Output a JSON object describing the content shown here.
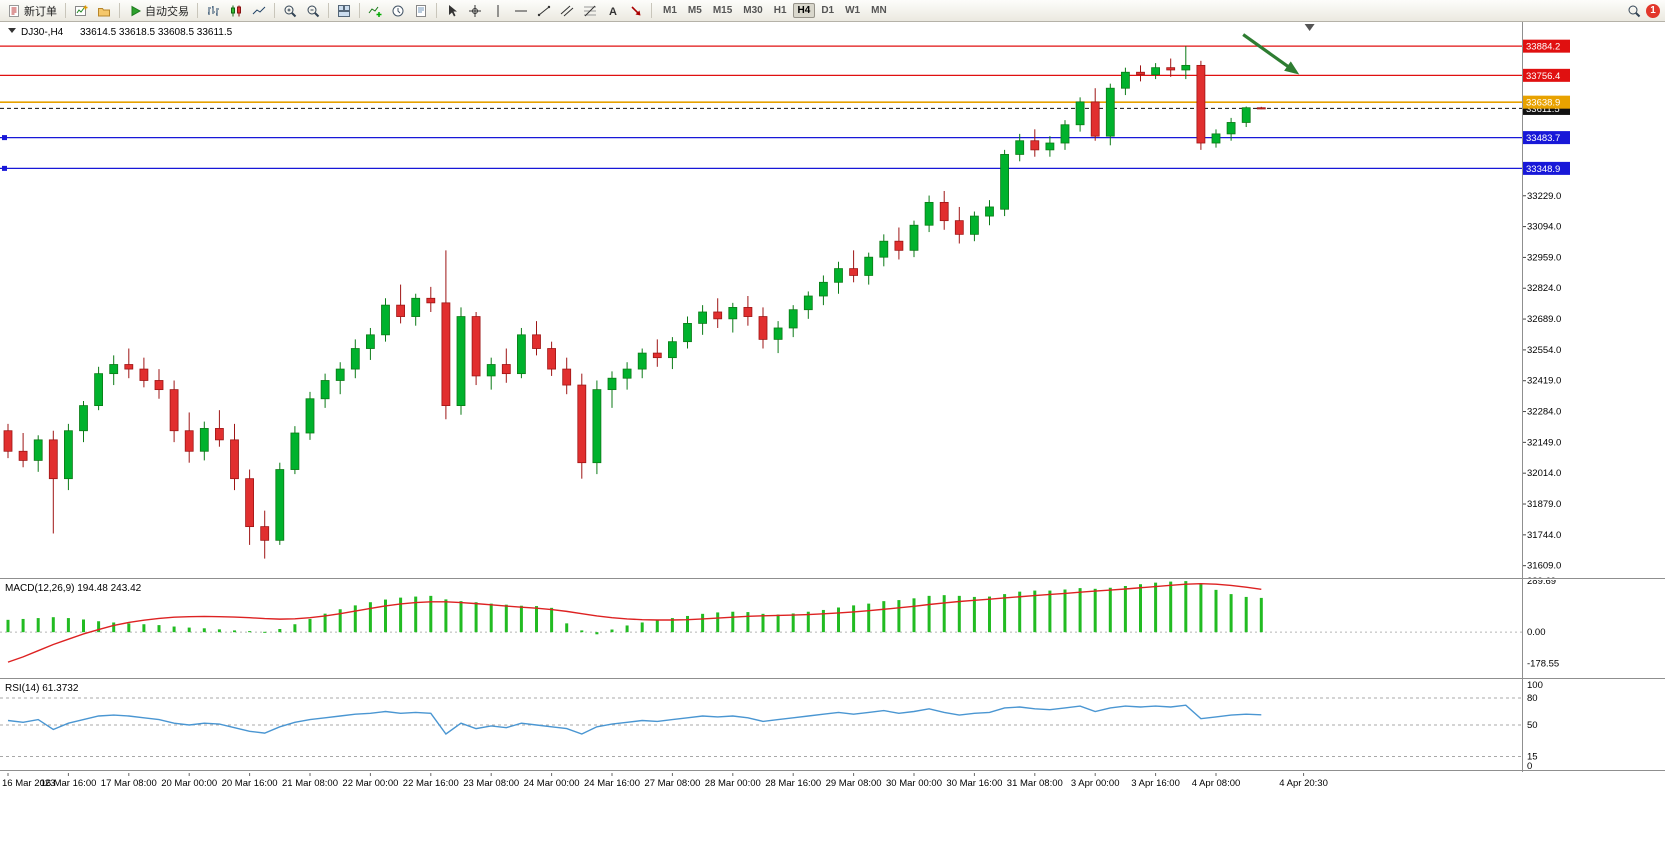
{
  "toolbar": {
    "new_order": {
      "label": "新订单"
    },
    "autotrading": {
      "label": "自动交易"
    },
    "timeframes": {
      "items": [
        "M1",
        "M5",
        "M15",
        "M30",
        "H1",
        "H4",
        "D1",
        "W1",
        "MN"
      ],
      "active": "H4"
    },
    "notification": {
      "count": "1"
    }
  },
  "chart": {
    "symbol_period": "DJ30-,H4",
    "ohlc_line": "33614.5 33618.5 33608.5 33611.5"
  },
  "chart_data": {
    "type": "candlestick",
    "title": "DJ30-,H4",
    "ohlc": {
      "open": 33614.5,
      "high": 33618.5,
      "low": 33608.5,
      "close": 33611.5
    },
    "ylim": [
      31555,
      33990
    ],
    "colors": {
      "up": "#00b22d",
      "up_border": "#0b7a16",
      "down": "#e12f2f",
      "down_border": "#9e1515",
      "macd_hist": "#22bb22",
      "macd_signal": "#dd2222",
      "rsi_line": "#4a96d2"
    },
    "price_ticks": [
      {
        "value": 33229,
        "label": "33229.0"
      },
      {
        "value": 33094,
        "label": "33094.0"
      },
      {
        "value": 32959,
        "label": "32959.0"
      },
      {
        "value": 32824,
        "label": "32824.0"
      },
      {
        "value": 32689,
        "label": "32689.0"
      },
      {
        "value": 32554,
        "label": "32554.0"
      },
      {
        "value": 32419,
        "label": "32419.0"
      },
      {
        "value": 32284,
        "label": "32284.0"
      },
      {
        "value": 32149,
        "label": "32149.0"
      },
      {
        "value": 32014,
        "label": "32014.0"
      },
      {
        "value": 31879,
        "label": "31879.0"
      },
      {
        "value": 31744,
        "label": "31744.0"
      },
      {
        "value": 31609,
        "label": "31609.0"
      }
    ],
    "hlines": [
      {
        "name": "resistance-line-1",
        "price": 33884.2,
        "label": "33884.2",
        "color": "#e01010",
        "width": 1.3
      },
      {
        "name": "resistance-line-2",
        "price": 33756.4,
        "label": "33756.4",
        "color": "#e01010",
        "width": 1.3
      },
      {
        "name": "bid-price-line",
        "price": 33611.5,
        "label": "33611.5",
        "color": "#111111",
        "width": 1,
        "dashed": true
      },
      {
        "name": "pivot-line",
        "price": 33638.9,
        "label": "33638.9",
        "color": "#e8a200",
        "width": 1.6
      },
      {
        "name": "support-line-1",
        "price": 33483.7,
        "label": "33483.7",
        "color": "#1818d8",
        "width": 1.3,
        "handles": true
      },
      {
        "name": "support-line-2",
        "price": 33348.9,
        "label": "33348.9",
        "color": "#1818d8",
        "width": 1.3,
        "handles": true
      }
    ],
    "candles": [
      [
        32200,
        32230,
        32080,
        32110
      ],
      [
        32110,
        32190,
        32040,
        32070
      ],
      [
        32070,
        32180,
        32020,
        32160
      ],
      [
        32160,
        32200,
        31750,
        31990
      ],
      [
        31990,
        32230,
        31940,
        32200
      ],
      [
        32200,
        32330,
        32150,
        32310
      ],
      [
        32310,
        32480,
        32290,
        32450
      ],
      [
        32450,
        32530,
        32400,
        32490
      ],
      [
        32490,
        32560,
        32430,
        32470
      ],
      [
        32470,
        32520,
        32390,
        32420
      ],
      [
        32420,
        32470,
        32340,
        32380
      ],
      [
        32380,
        32420,
        32150,
        32200
      ],
      [
        32200,
        32280,
        32060,
        32110
      ],
      [
        32110,
        32240,
        32070,
        32210
      ],
      [
        32210,
        32290,
        32130,
        32160
      ],
      [
        32160,
        32230,
        31940,
        31990
      ],
      [
        31990,
        32030,
        31700,
        31780
      ],
      [
        31780,
        31850,
        31640,
        31720
      ],
      [
        31720,
        32060,
        31700,
        32030
      ],
      [
        32030,
        32220,
        32010,
        32190
      ],
      [
        32190,
        32370,
        32160,
        32340
      ],
      [
        32340,
        32450,
        32300,
        32420
      ],
      [
        32420,
        32500,
        32360,
        32470
      ],
      [
        32470,
        32600,
        32430,
        32560
      ],
      [
        32560,
        32650,
        32510,
        32620
      ],
      [
        32620,
        32780,
        32590,
        32750
      ],
      [
        32750,
        32840,
        32670,
        32700
      ],
      [
        32700,
        32800,
        32660,
        32780
      ],
      [
        32780,
        32830,
        32720,
        32760
      ],
      [
        32760,
        32990,
        32250,
        32310
      ],
      [
        32310,
        32740,
        32270,
        32700
      ],
      [
        32700,
        32720,
        32400,
        32440
      ],
      [
        32440,
        32520,
        32380,
        32490
      ],
      [
        32490,
        32560,
        32410,
        32450
      ],
      [
        32450,
        32650,
        32430,
        32620
      ],
      [
        32620,
        32680,
        32530,
        32560
      ],
      [
        32560,
        32590,
        32440,
        32470
      ],
      [
        32470,
        32520,
        32360,
        32400
      ],
      [
        32400,
        32450,
        31990,
        32060
      ],
      [
        32060,
        32420,
        32010,
        32380
      ],
      [
        32380,
        32460,
        32300,
        32430
      ],
      [
        32430,
        32500,
        32380,
        32470
      ],
      [
        32470,
        32560,
        32430,
        32540
      ],
      [
        32540,
        32600,
        32480,
        32520
      ],
      [
        32520,
        32610,
        32470,
        32590
      ],
      [
        32590,
        32700,
        32560,
        32670
      ],
      [
        32670,
        32750,
        32620,
        32720
      ],
      [
        32720,
        32780,
        32650,
        32690
      ],
      [
        32690,
        32760,
        32630,
        32740
      ],
      [
        32740,
        32790,
        32660,
        32700
      ],
      [
        32700,
        32740,
        32560,
        32600
      ],
      [
        32600,
        32680,
        32540,
        32650
      ],
      [
        32650,
        32750,
        32610,
        32730
      ],
      [
        32730,
        32810,
        32690,
        32790
      ],
      [
        32790,
        32880,
        32750,
        32850
      ],
      [
        32850,
        32940,
        32800,
        32910
      ],
      [
        32910,
        32990,
        32850,
        32880
      ],
      [
        32880,
        32980,
        32840,
        32960
      ],
      [
        32960,
        33060,
        32920,
        33030
      ],
      [
        33030,
        33090,
        32950,
        32990
      ],
      [
        32990,
        33120,
        32960,
        33100
      ],
      [
        33100,
        33230,
        33070,
        33200
      ],
      [
        33200,
        33250,
        33080,
        33120
      ],
      [
        33120,
        33180,
        33020,
        33060
      ],
      [
        33060,
        33160,
        33030,
        33140
      ],
      [
        33140,
        33210,
        33100,
        33180
      ],
      [
        33170,
        33430,
        33140,
        33410
      ],
      [
        33410,
        33500,
        33380,
        33470
      ],
      [
        33470,
        33520,
        33400,
        33430
      ],
      [
        33430,
        33490,
        33400,
        33460
      ],
      [
        33460,
        33560,
        33430,
        33540
      ],
      [
        33540,
        33660,
        33510,
        33640
      ],
      [
        33640,
        33700,
        33470,
        33490
      ],
      [
        33490,
        33720,
        33450,
        33700
      ],
      [
        33700,
        33790,
        33670,
        33770
      ],
      [
        33770,
        33800,
        33730,
        33760
      ],
      [
        33760,
        33810,
        33740,
        33790
      ],
      [
        33790,
        33830,
        33750,
        33780
      ],
      [
        33780,
        33884,
        33740,
        33800
      ],
      [
        33800,
        33820,
        33430,
        33460
      ],
      [
        33460,
        33520,
        33440,
        33500
      ],
      [
        33500,
        33570,
        33470,
        33550
      ],
      [
        33550,
        33620,
        33530,
        33614.5
      ],
      [
        33614.5,
        33618.5,
        33608.5,
        33611.5
      ]
    ],
    "time_labels": [
      "16 Mar 2023",
      "16 Mar 16:00",
      "17 Mar 08:00",
      "20 Mar 00:00",
      "20 Mar 16:00",
      "21 Mar 08:00",
      "22 Mar 00:00",
      "22 Mar 16:00",
      "23 Mar 08:00",
      "24 Mar 00:00",
      "24 Mar 16:00",
      "27 Mar 08:00",
      "28 Mar 00:00",
      "28 Mar 16:00",
      "29 Mar 08:00",
      "30 Mar 00:00",
      "30 Mar 16:00",
      "31 Mar 08:00",
      "3 Apr 00:00",
      "3 Apr 16:00",
      "4 Apr 08:00",
      "4 Apr 20:30"
    ],
    "arrow": {
      "bar1": 81.8,
      "price1": 33935,
      "bar2": 85.3,
      "price2": 33770,
      "color": "#2e7d32"
    },
    "shift_marker_bar": 86.2,
    "macd": {
      "label": "MACD(12,26,9) 194.48 243.42",
      "range": [
        -260,
        296
      ],
      "axis_ticks": [
        {
          "value": 289.69,
          "label": "289.69"
        },
        {
          "value": 0,
          "label": "0.00"
        },
        {
          "value": -178.55,
          "label": "-178.55"
        }
      ],
      "histogram": [
        70,
        75,
        80,
        85,
        80,
        72,
        62,
        55,
        50,
        45,
        40,
        32,
        26,
        22,
        16,
        10,
        6,
        2,
        18,
        45,
        75,
        105,
        130,
        152,
        170,
        185,
        196,
        202,
        206,
        186,
        176,
        170,
        162,
        156,
        150,
        148,
        138,
        50,
        10,
        -12,
        15,
        38,
        55,
        68,
        80,
        92,
        104,
        112,
        116,
        114,
        104,
        100,
        106,
        116,
        126,
        140,
        152,
        162,
        176,
        182,
        192,
        206,
        210,
        206,
        200,
        202,
        216,
        230,
        236,
        236,
        242,
        250,
        246,
        252,
        262,
        272,
        281,
        287,
        289.69,
        276,
        240,
        216,
        200,
        194.48
      ],
      "signal": [
        -170,
        -140,
        -105,
        -70,
        -40,
        -10,
        15,
        38,
        55,
        68,
        78,
        85,
        88,
        89,
        88,
        86,
        82,
        77,
        74,
        76,
        82,
        92,
        105,
        120,
        135,
        149,
        160,
        168,
        172,
        172,
        168,
        162,
        155,
        148,
        142,
        136,
        128,
        118,
        105,
        92,
        82,
        75,
        71,
        69,
        69,
        71,
        75,
        80,
        85,
        90,
        93,
        95,
        97,
        100,
        104,
        109,
        115,
        122,
        130,
        138,
        147,
        157,
        166,
        174,
        181,
        187,
        194,
        201,
        208,
        214,
        220,
        227,
        233,
        239,
        245,
        252,
        259,
        266,
        272,
        275,
        272,
        265,
        255,
        243.42
      ]
    },
    "rsi": {
      "label": "RSI(14) 61.3732",
      "value": 61.3732,
      "levels": [
        80,
        50,
        15
      ],
      "axis_ticks": [
        {
          "value": 100,
          "label": "100"
        },
        {
          "value": 80,
          "label": "80"
        },
        {
          "value": 50,
          "label": "50"
        },
        {
          "value": 15,
          "label": "15"
        },
        {
          "value": 0,
          "label": "0"
        }
      ],
      "values": [
        55,
        53,
        56,
        45,
        52,
        56,
        60,
        61,
        60,
        58,
        56,
        52,
        50,
        52,
        51,
        47,
        43,
        41,
        48,
        53,
        56,
        58,
        60,
        62,
        63,
        65,
        63,
        64,
        63,
        40,
        52,
        46,
        49,
        47,
        52,
        50,
        48,
        46,
        40,
        48,
        51,
        53,
        55,
        54,
        56,
        58,
        60,
        59,
        60,
        58,
        54,
        56,
        58,
        60,
        62,
        64,
        62,
        64,
        66,
        63,
        65,
        68,
        64,
        61,
        63,
        64,
        69,
        70,
        68,
        67,
        69,
        71,
        65,
        69,
        71,
        70,
        71,
        70,
        72,
        57,
        59,
        61,
        62,
        61.3732
      ]
    }
  }
}
